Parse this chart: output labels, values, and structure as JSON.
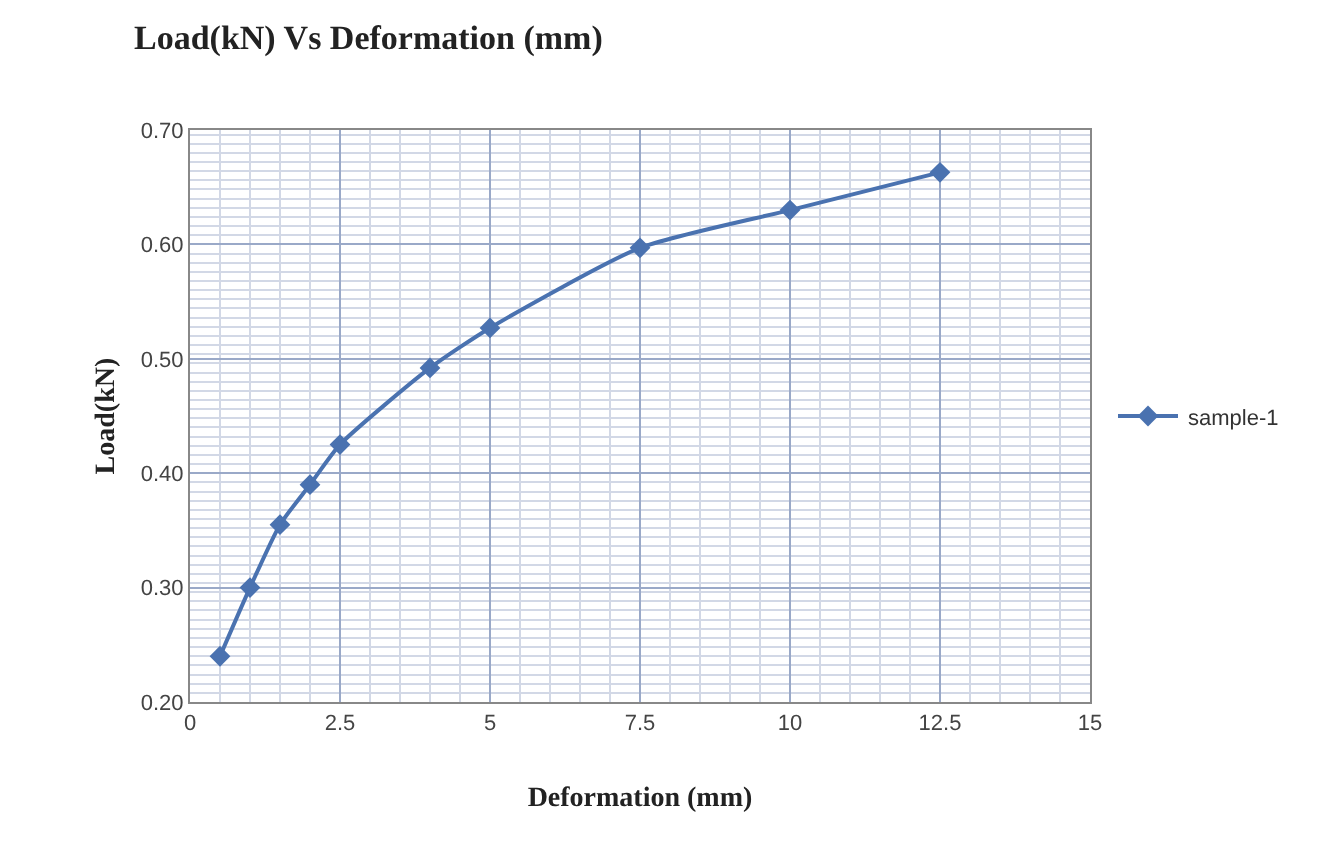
{
  "chart_data": {
    "type": "line",
    "title": "Load(kN) Vs Deformation (mm)",
    "xlabel": "Deformation (mm)",
    "ylabel": "Load(kN)",
    "x": [
      0.5,
      1,
      1.5,
      2,
      2.5,
      4,
      5,
      7.5,
      10,
      12.5
    ],
    "series": [
      {
        "name": "sample-1",
        "color": "#4a72b0",
        "values": [
          0.24,
          0.3,
          0.355,
          0.39,
          0.425,
          0.492,
          0.527,
          0.597,
          0.63,
          0.663
        ]
      }
    ],
    "xlim": [
      0,
      15
    ],
    "xticks": [
      0,
      2.5,
      5,
      7.5,
      10,
      12.5,
      15
    ],
    "ylim": [
      0.2,
      0.7
    ],
    "yticks": [
      {
        "value": 0.2,
        "label": "0.20"
      },
      {
        "value": 0.3,
        "label": "0.30"
      },
      {
        "value": 0.4,
        "label": "0.40"
      },
      {
        "value": 0.5,
        "label": "0.50"
      },
      {
        "value": 0.6,
        "label": "0.60"
      },
      {
        "value": 0.7,
        "label": "0.70"
      }
    ],
    "grid": true,
    "legend": "right",
    "marker": "diamond",
    "line_style": "solid"
  }
}
